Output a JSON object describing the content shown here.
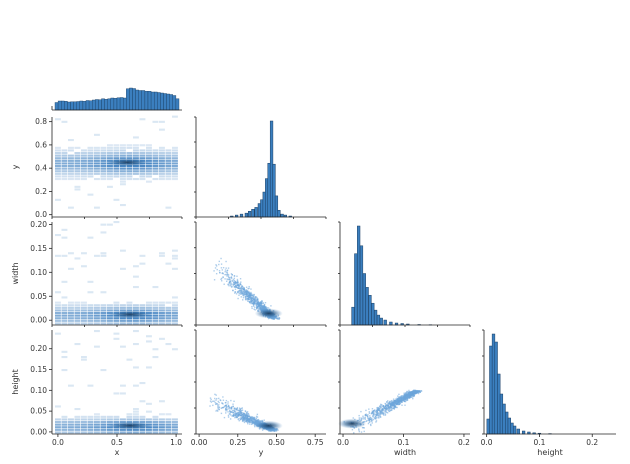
{
  "chart_data": {
    "type": "pairplot",
    "variables": [
      "x",
      "y",
      "width",
      "height"
    ],
    "colors": {
      "hist_fill": "#3b7fbf",
      "hist_edge": "#1b3f63",
      "density_low": "#cfe1f3",
      "density_high": "#1a3a5c"
    },
    "top_marginal": {
      "variable": "x",
      "bin_edges_range": [
        0.0,
        1.0
      ],
      "relative_heights": [
        0.3,
        0.36,
        0.36,
        0.35,
        0.32,
        0.33,
        0.33,
        0.34,
        0.36,
        0.35,
        0.38,
        0.37,
        0.4,
        0.42,
        0.41,
        0.45,
        0.43,
        0.45,
        0.48,
        0.47,
        0.49,
        0.5,
        0.48,
        0.85,
        0.88,
        0.86,
        0.8,
        0.78,
        0.78,
        0.75,
        0.75,
        0.72,
        0.72,
        0.7,
        0.68,
        0.66,
        0.64,
        0.62,
        0.58,
        0.45
      ]
    },
    "panels": [
      {
        "id": "y_vs_x",
        "kind": "hist2d",
        "row": "y",
        "col": "x",
        "xlim": [
          -0.05,
          1.05
        ],
        "ylim": [
          -0.02,
          0.84
        ],
        "yticks": [
          0.0,
          0.2,
          0.4,
          0.6,
          0.8
        ],
        "yticklabels": [
          "0.0",
          "0.2",
          "0.4",
          "0.6",
          "0.8"
        ],
        "ylabel": "y",
        "density_center": {
          "y": 0.45,
          "spread": 0.06,
          "x_peak": 0.58
        }
      },
      {
        "id": "y_hist",
        "kind": "hist",
        "variable": "y",
        "xlim": [
          0.0,
          0.8
        ],
        "bars": [
          {
            "x": 0.22,
            "h": 0.01
          },
          {
            "x": 0.25,
            "h": 0.02
          },
          {
            "x": 0.28,
            "h": 0.03
          },
          {
            "x": 0.31,
            "h": 0.04
          },
          {
            "x": 0.33,
            "h": 0.06
          },
          {
            "x": 0.35,
            "h": 0.08
          },
          {
            "x": 0.37,
            "h": 0.1
          },
          {
            "x": 0.39,
            "h": 0.14
          },
          {
            "x": 0.405,
            "h": 0.18
          },
          {
            "x": 0.42,
            "h": 0.26
          },
          {
            "x": 0.435,
            "h": 0.4
          },
          {
            "x": 0.45,
            "h": 0.56
          },
          {
            "x": 0.465,
            "h": 1.0
          },
          {
            "x": 0.48,
            "h": 0.55
          },
          {
            "x": 0.495,
            "h": 0.22
          },
          {
            "x": 0.51,
            "h": 0.07
          },
          {
            "x": 0.53,
            "h": 0.03
          },
          {
            "x": 0.55,
            "h": 0.02
          },
          {
            "x": 0.58,
            "h": 0.01
          }
        ]
      },
      {
        "id": "width_vs_x",
        "kind": "hist2d",
        "row": "width",
        "col": "x",
        "xlim": [
          -0.05,
          1.05
        ],
        "ylim": [
          -0.01,
          0.205
        ],
        "yticks": [
          0.0,
          0.05,
          0.1,
          0.15,
          0.2
        ],
        "yticklabels": [
          "0.00",
          "0.05",
          "0.10",
          "0.15",
          "0.20"
        ],
        "ylabel": "width",
        "density_center": {
          "y": 0.012,
          "spread": 0.012,
          "x_peak": 0.6
        }
      },
      {
        "id": "width_vs_y",
        "kind": "scatter",
        "row": "width",
        "col": "y",
        "xlim": [
          -0.02,
          0.82
        ],
        "ylim": [
          -0.01,
          0.205
        ],
        "trend": {
          "start": [
            0.08,
            0.12
          ],
          "end": [
            0.48,
            0.005
          ],
          "dense_at": [
            0.45,
            0.01
          ]
        }
      },
      {
        "id": "width_hist",
        "kind": "hist",
        "variable": "width",
        "xlim": [
          -0.02,
          0.21
        ],
        "bars": [
          {
            "x": 0.003,
            "h": 0.18
          },
          {
            "x": 0.008,
            "h": 0.72
          },
          {
            "x": 0.013,
            "h": 1.0
          },
          {
            "x": 0.018,
            "h": 0.8
          },
          {
            "x": 0.023,
            "h": 0.52
          },
          {
            "x": 0.028,
            "h": 0.38
          },
          {
            "x": 0.033,
            "h": 0.3
          },
          {
            "x": 0.038,
            "h": 0.22
          },
          {
            "x": 0.043,
            "h": 0.15
          },
          {
            "x": 0.048,
            "h": 0.1
          },
          {
            "x": 0.053,
            "h": 0.07
          },
          {
            "x": 0.06,
            "h": 0.05
          },
          {
            "x": 0.07,
            "h": 0.03
          },
          {
            "x": 0.08,
            "h": 0.02
          },
          {
            "x": 0.09,
            "h": 0.015
          },
          {
            "x": 0.1,
            "h": 0.01
          },
          {
            "x": 0.12,
            "h": 0.005
          },
          {
            "x": 0.14,
            "h": 0.003
          }
        ]
      },
      {
        "id": "height_vs_x",
        "kind": "hist2d",
        "row": "height",
        "col": "x",
        "xlim": [
          -0.05,
          1.05
        ],
        "ylim": [
          -0.005,
          0.245
        ],
        "xticks": [
          0.0,
          0.5,
          1.0
        ],
        "xticklabels": [
          "0.0",
          "0.5",
          "1.0"
        ],
        "xlabel": "x",
        "yticks": [
          0.0,
          0.05,
          0.1,
          0.15,
          0.2
        ],
        "yticklabels": [
          "0.00",
          "0.05",
          "0.10",
          "0.15",
          "0.20"
        ],
        "ylabel": "height",
        "density_center": {
          "y": 0.015,
          "spread": 0.012,
          "x_peak": 0.6
        }
      },
      {
        "id": "height_vs_y",
        "kind": "scatter",
        "row": "height",
        "col": "y",
        "xlim": [
          -0.02,
          0.82
        ],
        "ylim": [
          -0.005,
          0.245
        ],
        "xticks": [
          0.0,
          0.25,
          0.5,
          0.75
        ],
        "xticklabels": [
          "0.00",
          "0.25",
          "0.50",
          "0.75"
        ],
        "xlabel": "y",
        "trend": {
          "start": [
            0.05,
            0.08
          ],
          "end": [
            0.48,
            0.005
          ],
          "dense_at": [
            0.45,
            0.01
          ]
        }
      },
      {
        "id": "height_vs_width",
        "kind": "scatter",
        "row": "height",
        "col": "width",
        "xlim": [
          -0.005,
          0.21
        ],
        "ylim": [
          -0.005,
          0.245
        ],
        "xticks": [
          0.0,
          0.1,
          0.2
        ],
        "xticklabels": [
          "0.0",
          "0.1",
          "0.2"
        ],
        "xlabel": "width",
        "trend": {
          "start": [
            0.005,
            0.005
          ],
          "end": [
            0.12,
            0.1
          ],
          "dense_at": [
            0.015,
            0.015
          ]
        }
      },
      {
        "id": "height_hist",
        "kind": "hist",
        "variable": "height",
        "xlim": [
          -0.005,
          0.245
        ],
        "xticks": [
          0.0,
          0.1,
          0.2
        ],
        "xticklabels": [
          "0.0",
          "0.1",
          "0.2"
        ],
        "xlabel": "height",
        "bars": [
          {
            "x": 0.003,
            "h": 0.15
          },
          {
            "x": 0.008,
            "h": 0.88
          },
          {
            "x": 0.013,
            "h": 1.0
          },
          {
            "x": 0.018,
            "h": 0.92
          },
          {
            "x": 0.023,
            "h": 0.6
          },
          {
            "x": 0.028,
            "h": 0.4
          },
          {
            "x": 0.033,
            "h": 0.3
          },
          {
            "x": 0.038,
            "h": 0.22
          },
          {
            "x": 0.043,
            "h": 0.16
          },
          {
            "x": 0.048,
            "h": 0.11
          },
          {
            "x": 0.053,
            "h": 0.08
          },
          {
            "x": 0.06,
            "h": 0.05
          },
          {
            "x": 0.07,
            "h": 0.03
          },
          {
            "x": 0.08,
            "h": 0.02
          },
          {
            "x": 0.09,
            "h": 0.012
          },
          {
            "x": 0.1,
            "h": 0.008
          },
          {
            "x": 0.12,
            "h": 0.004
          }
        ]
      }
    ]
  }
}
